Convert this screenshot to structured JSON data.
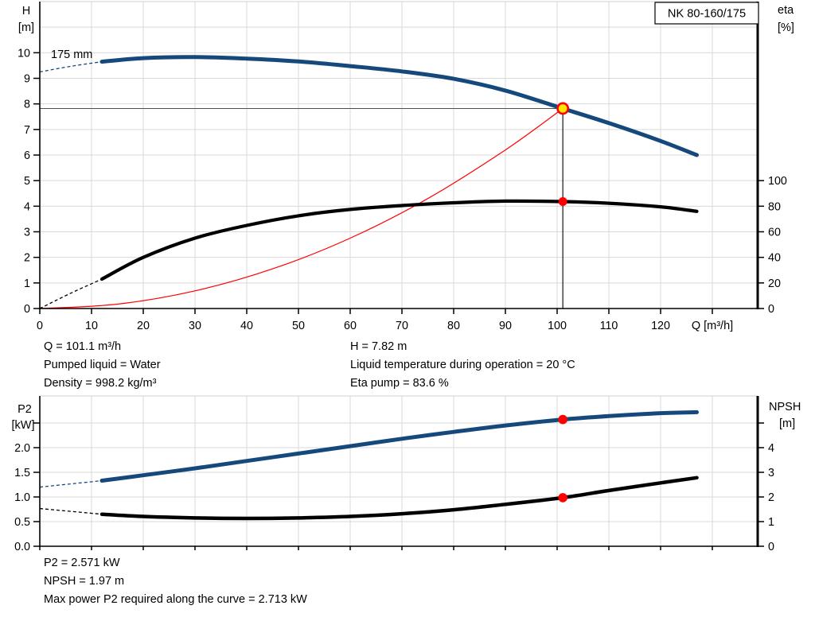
{
  "colors": {
    "curve_blue": "#15497c",
    "curve_black": "#000000",
    "system_red": "#ff0000",
    "grid": "#d9d9d9",
    "axis": "#000000",
    "duty_ref_line": "#4d4d4d",
    "duty_marker_fill": "#ffe600",
    "duty_marker_ring": "#ff0000",
    "duty_dot": "#ff0000"
  },
  "chart_data": [
    {
      "id": "head-chart",
      "type": "line",
      "title": "NK 80-160/175",
      "impeller_label": "175 mm",
      "xlabel": "Q [m³/h]",
      "ylabel_left": [
        "H",
        "[m]"
      ],
      "ylabel_right": [
        "eta",
        "[%]"
      ],
      "x_range": [
        0,
        138.8
      ],
      "y_left_range": [
        0,
        12
      ],
      "y_right_range": [
        0,
        240
      ],
      "grid": true,
      "x_ticks": [
        {
          "v": 0,
          "label": "0"
        },
        {
          "v": 10,
          "label": "10"
        },
        {
          "v": 20,
          "label": "20"
        },
        {
          "v": 30,
          "label": "30"
        },
        {
          "v": 40,
          "label": "40"
        },
        {
          "v": 50,
          "label": "50"
        },
        {
          "v": 60,
          "label": "60"
        },
        {
          "v": 70,
          "label": "70"
        },
        {
          "v": 80,
          "label": "80"
        },
        {
          "v": 90,
          "label": "90"
        },
        {
          "v": 100,
          "label": "100"
        },
        {
          "v": 110,
          "label": "110"
        },
        {
          "v": 120,
          "label": "120"
        },
        {
          "v": 130,
          "label": ""
        }
      ],
      "y_left_ticks": [
        {
          "v": 0,
          "label": "0"
        },
        {
          "v": 1,
          "label": "1"
        },
        {
          "v": 2,
          "label": "2"
        },
        {
          "v": 3,
          "label": "3"
        },
        {
          "v": 4,
          "label": "4"
        },
        {
          "v": 5,
          "label": "5"
        },
        {
          "v": 6,
          "label": "6"
        },
        {
          "v": 7,
          "label": "7"
        },
        {
          "v": 8,
          "label": "8"
        },
        {
          "v": 9,
          "label": "9"
        },
        {
          "v": 10,
          "label": "10"
        }
      ],
      "y_right_ticks": [
        {
          "v": 0,
          "label": "0"
        },
        {
          "v": 20,
          "label": "20"
        },
        {
          "v": 40,
          "label": "40"
        },
        {
          "v": 60,
          "label": "60"
        },
        {
          "v": 80,
          "label": "80"
        },
        {
          "v": 100,
          "label": "100"
        }
      ],
      "series": [
        {
          "name": "system-curve",
          "axis": "left",
          "color": "system_red",
          "width": 1.2,
          "points": [
            [
              0,
              0
            ],
            [
              15,
              0.17
            ],
            [
              30,
              0.69
            ],
            [
              45,
              1.55
            ],
            [
              60,
              2.75
            ],
            [
              75,
              4.3
            ],
            [
              90,
              6.2
            ],
            [
              101.1,
              7.82
            ]
          ]
        },
        {
          "name": "efficiency-curve",
          "axis": "right",
          "color": "curve_black",
          "width": 4.2,
          "dash_break_q": 12,
          "points": [
            [
              0,
              0
            ],
            [
              6,
              12
            ],
            [
              12,
              23
            ],
            [
              20,
              40
            ],
            [
              30,
              55
            ],
            [
              40,
              65
            ],
            [
              50,
              72.5
            ],
            [
              60,
              77.5
            ],
            [
              70,
              80.5
            ],
            [
              80,
              82.7
            ],
            [
              90,
              84
            ],
            [
              101.1,
              83.6
            ],
            [
              110,
              82.3
            ],
            [
              120,
              79.5
            ],
            [
              127,
              76
            ]
          ]
        },
        {
          "name": "head-curve",
          "axis": "left",
          "color": "curve_blue",
          "width": 5,
          "dash_break_q": 12,
          "points": [
            [
              0,
              9.25
            ],
            [
              6,
              9.47
            ],
            [
              12,
              9.65
            ],
            [
              20,
              9.79
            ],
            [
              30,
              9.83
            ],
            [
              40,
              9.77
            ],
            [
              50,
              9.66
            ],
            [
              60,
              9.48
            ],
            [
              70,
              9.27
            ],
            [
              80,
              8.98
            ],
            [
              90,
              8.52
            ],
            [
              101.1,
              7.82
            ],
            [
              110,
              7.25
            ],
            [
              120,
              6.55
            ],
            [
              127,
              6.0
            ]
          ]
        }
      ],
      "duty_point": {
        "q": 101.1,
        "h": 7.82,
        "eta": 83.6
      }
    },
    {
      "id": "power-chart",
      "type": "line",
      "title": "",
      "xlabel": "",
      "ylabel_left": [
        "P2",
        "[kW]"
      ],
      "ylabel_right": [
        "NPSH",
        "[m]"
      ],
      "x_range": [
        0,
        138.8
      ],
      "y_left_range": [
        0,
        3.05
      ],
      "y_right_range": [
        0,
        6.1
      ],
      "grid": true,
      "x_ticks": [
        {
          "v": 0,
          "label": ""
        },
        {
          "v": 10,
          "label": ""
        },
        {
          "v": 20,
          "label": ""
        },
        {
          "v": 30,
          "label": ""
        },
        {
          "v": 40,
          "label": ""
        },
        {
          "v": 50,
          "label": ""
        },
        {
          "v": 60,
          "label": ""
        },
        {
          "v": 70,
          "label": ""
        },
        {
          "v": 80,
          "label": ""
        },
        {
          "v": 90,
          "label": ""
        },
        {
          "v": 100,
          "label": ""
        },
        {
          "v": 110,
          "label": ""
        },
        {
          "v": 120,
          "label": ""
        },
        {
          "v": 130,
          "label": ""
        }
      ],
      "y_left_ticks": [
        {
          "v": 0,
          "label": "0.0"
        },
        {
          "v": 0.5,
          "label": "0.5"
        },
        {
          "v": 1,
          "label": "1.0"
        },
        {
          "v": 1.5,
          "label": "1.5"
        },
        {
          "v": 2,
          "label": "2.0"
        },
        {
          "v": 2.5,
          "label": ""
        }
      ],
      "y_right_ticks": [
        {
          "v": 0,
          "label": "0"
        },
        {
          "v": 1,
          "label": "1"
        },
        {
          "v": 2,
          "label": "2"
        },
        {
          "v": 3,
          "label": "3"
        },
        {
          "v": 4,
          "label": "4"
        },
        {
          "v": 5,
          "label": ""
        }
      ],
      "series": [
        {
          "name": "p2-curve",
          "axis": "left",
          "color": "curve_blue",
          "width": 5,
          "dash_break_q": 12,
          "points": [
            [
              0,
              1.2
            ],
            [
              12,
              1.33
            ],
            [
              20,
              1.44
            ],
            [
              30,
              1.58
            ],
            [
              40,
              1.73
            ],
            [
              50,
              1.88
            ],
            [
              60,
              2.03
            ],
            [
              70,
              2.18
            ],
            [
              80,
              2.32
            ],
            [
              90,
              2.45
            ],
            [
              101.1,
              2.571
            ],
            [
              110,
              2.64
            ],
            [
              120,
              2.7
            ],
            [
              127,
              2.72
            ]
          ]
        },
        {
          "name": "npsh-curve",
          "axis": "right",
          "color": "curve_black",
          "width": 4.5,
          "dash_break_q": 12,
          "points": [
            [
              0,
              1.53
            ],
            [
              12,
              1.3
            ],
            [
              20,
              1.21
            ],
            [
              30,
              1.15
            ],
            [
              40,
              1.13
            ],
            [
              50,
              1.15
            ],
            [
              60,
              1.21
            ],
            [
              70,
              1.32
            ],
            [
              80,
              1.48
            ],
            [
              90,
              1.7
            ],
            [
              101.1,
              1.97
            ],
            [
              110,
              2.26
            ],
            [
              120,
              2.57
            ],
            [
              127,
              2.78
            ]
          ]
        }
      ],
      "duty_markers": [
        {
          "name": "p2-duty-dot",
          "q": 101.1,
          "value": 2.571,
          "axis": "left"
        },
        {
          "name": "npsh-duty-dot",
          "q": 101.1,
          "value": 1.97,
          "axis": "right"
        }
      ]
    }
  ],
  "info_top": {
    "left": [
      "Q = 101.1 m³/h",
      "Pumped liquid = Water",
      "Density = 998.2 kg/m³"
    ],
    "right": [
      "H = 7.82 m",
      "Liquid temperature during operation = 20 °C",
      "Eta pump = 83.6 %"
    ]
  },
  "info_bottom": [
    "P2 = 2.571 kW",
    "NPSH = 1.97 m",
    "Max power P2 required along the curve = 2.713 kW"
  ]
}
